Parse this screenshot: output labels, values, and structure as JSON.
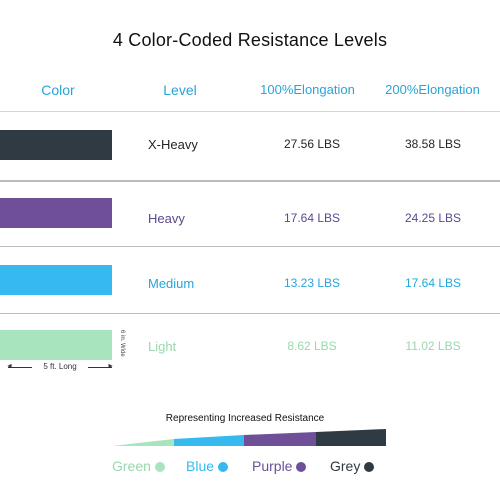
{
  "title": "4 Color-Coded Resistance Levels",
  "headers": {
    "color": "Color",
    "level": "Level",
    "elong100": "100%Elongation",
    "elong200": "200%Elongation"
  },
  "rows": [
    {
      "level": "X-Heavy",
      "elong100": "27.56 LBS",
      "elong200": "38.58 LBS",
      "color": "#2f3a42"
    },
    {
      "level": "Heavy",
      "elong100": "17.64 LBS",
      "elong200": "24.25 LBS",
      "color": "#6e4f98"
    },
    {
      "level": "Medium",
      "elong100": "13.23 LBS",
      "elong200": "17.64 LBS",
      "color": "#35b9ee"
    },
    {
      "level": "Light",
      "elong100": "8.62 LBS",
      "elong200": "11.02 LBS",
      "color": "#a8e4bd"
    }
  ],
  "dimensions": {
    "length": "5 ft. Long",
    "width": "6 in. Wide"
  },
  "resistance_caption": "Representing Increased Resistance",
  "legend": {
    "green": "Green",
    "blue": "Blue",
    "purple": "Purple",
    "grey": "Grey"
  },
  "colors": {
    "green": "#a8e4bd",
    "blue": "#35b9ee",
    "purple": "#6e4f98",
    "grey": "#2f3a42",
    "header": "#2aa3d8"
  }
}
